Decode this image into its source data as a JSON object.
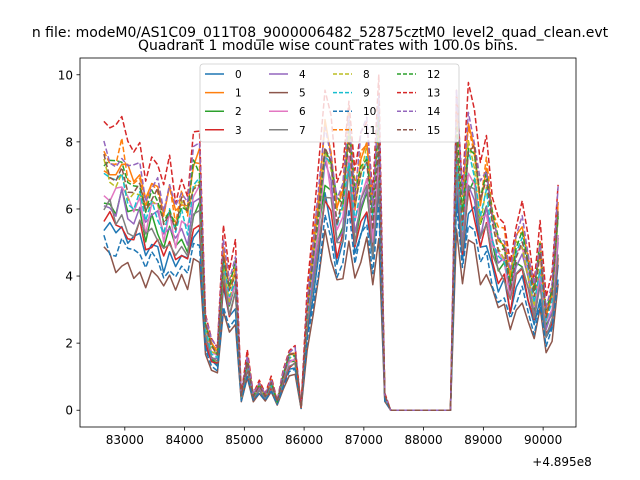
{
  "chart_data": {
    "type": "line",
    "suptitle": "n file: modeM0/AS1C09_011T08_9000006482_52875cztM0_level2_quad_clean.evt",
    "title": "Quadrant 1 module wise count rates with 100.0s bins.",
    "xlabel": "",
    "ylabel": "",
    "offset_text": "+4.895e8",
    "xlim": [
      82250,
      90550
    ],
    "ylim": [
      -0.5,
      10.5
    ],
    "x_ticks": [
      83000,
      84000,
      85000,
      86000,
      87000,
      88000,
      89000,
      90000
    ],
    "y_ticks": [
      0,
      2,
      4,
      6,
      8,
      10
    ],
    "legend_location": "top-center",
    "legend_columns": 4,
    "x": [
      82650,
      82750,
      82850,
      82950,
      83050,
      83150,
      83250,
      83350,
      83450,
      83550,
      83650,
      83750,
      83850,
      83950,
      84050,
      84150,
      84250,
      84350,
      84450,
      84550,
      84650,
      84750,
      84850,
      84950,
      85050,
      85150,
      85250,
      85350,
      85450,
      85550,
      85650,
      85750,
      85850,
      85950,
      86050,
      86150,
      86250,
      86350,
      86450,
      86550,
      86650,
      86750,
      86850,
      86950,
      87050,
      87150,
      87250,
      87350,
      87450,
      87550,
      87650,
      87750,
      87850,
      87950,
      88050,
      88150,
      88250,
      88350,
      88450,
      88550,
      88650,
      88750,
      88850,
      88950,
      89050,
      89150,
      89250,
      89350,
      89450,
      89550,
      89650,
      89750,
      89850,
      89950,
      90050,
      90150,
      90250
    ],
    "base_profile": [
      0.87,
      0.85,
      0.82,
      0.86,
      0.8,
      0.78,
      0.8,
      0.72,
      0.77,
      0.76,
      0.68,
      0.73,
      0.66,
      0.73,
      0.68,
      0.82,
      0.85,
      0.3,
      0.22,
      0.2,
      0.55,
      0.42,
      0.5,
      0.05,
      0.18,
      0.05,
      0.09,
      0.05,
      0.1,
      0.03,
      0.12,
      0.19,
      0.2,
      0.01,
      0.35,
      0.55,
      0.72,
      0.96,
      0.88,
      0.7,
      0.76,
      0.98,
      0.72,
      0.86,
      0.92,
      0.68,
      1.0,
      0.05,
      0.0,
      0.0,
      0.0,
      0.0,
      0.0,
      0.0,
      0.0,
      0.0,
      0.0,
      0.0,
      0.0,
      1.0,
      0.7,
      0.94,
      0.9,
      0.72,
      0.8,
      0.66,
      0.58,
      0.58,
      0.45,
      0.58,
      0.62,
      0.51,
      0.4,
      0.55,
      0.33,
      0.4,
      0.7
    ],
    "series": [
      {
        "name": "0",
        "color": "#1f77b4",
        "dash": "solid",
        "peak": 6.4
      },
      {
        "name": "1",
        "color": "#ff7f0e",
        "dash": "solid",
        "peak": 8.7
      },
      {
        "name": "2",
        "color": "#2ca02c",
        "dash": "solid",
        "peak": 7.3
      },
      {
        "name": "3",
        "color": "#d62728",
        "dash": "solid",
        "peak": 6.7
      },
      {
        "name": "4",
        "color": "#9467bd",
        "dash": "solid",
        "peak": 7.4
      },
      {
        "name": "5",
        "color": "#8c564b",
        "dash": "solid",
        "peak": 5.3
      },
      {
        "name": "6",
        "color": "#e377c2",
        "dash": "solid",
        "peak": 7.7
      },
      {
        "name": "7",
        "color": "#7f7f7f",
        "dash": "solid",
        "peak": 7.0
      },
      {
        "name": "8",
        "color": "#bcbd22",
        "dash": "dashed",
        "peak": 8.2
      },
      {
        "name": "9",
        "color": "#17becf",
        "dash": "dashed",
        "peak": 7.9
      },
      {
        "name": "10",
        "color": "#1f77b4",
        "dash": "dashed",
        "peak": 5.8
      },
      {
        "name": "11",
        "color": "#ff7f0e",
        "dash": "dashed",
        "peak": 8.9
      },
      {
        "name": "12",
        "color": "#2ca02c",
        "dash": "dashed",
        "peak": 8.6
      },
      {
        "name": "13",
        "color": "#d62728",
        "dash": "dashed",
        "peak": 9.9
      },
      {
        "name": "14",
        "color": "#9467bd",
        "dash": "dashed",
        "peak": 9.1
      },
      {
        "name": "15",
        "color": "#8c564b",
        "dash": "dashed",
        "peak": 8.3
      }
    ]
  }
}
